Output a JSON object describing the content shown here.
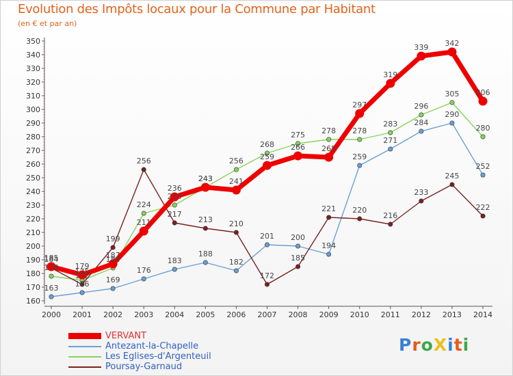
{
  "title": "Evolution des Impôts locaux pour la Commune par Habitant",
  "subtitle": "(en € et par an)",
  "logo_text": "ProXiti",
  "chart_data": {
    "type": "line",
    "title": "Evolution des Impôts locaux pour la Commune par Habitant",
    "subtitle": "(en € et par an)",
    "x": [
      "2000",
      "2001",
      "2002",
      "2003",
      "2004",
      "2005",
      "2006",
      "2007",
      "2008",
      "2009",
      "2010",
      "2011",
      "2012",
      "2013",
      "2014"
    ],
    "ylim": [
      160,
      350
    ],
    "ytick_step": 10,
    "grid": false,
    "legend_position": "bottom-left",
    "series": [
      {
        "name": "VERVANT",
        "color": "#ee0000",
        "emphasis": true,
        "values": [
          185,
          179,
          187,
          211,
          236,
          243,
          241,
          259,
          266,
          265,
          297,
          319,
          339,
          342,
          306
        ]
      },
      {
        "name": "Antezant-la-Chapelle",
        "color": "#6a9fd4",
        "emphasis": false,
        "values": [
          163,
          166,
          169,
          176,
          183,
          188,
          182,
          201,
          200,
          194,
          259,
          271,
          284,
          290,
          252
        ]
      },
      {
        "name": "Les Eglises-d'Argenteuil",
        "color": "#86d45a",
        "emphasis": false,
        "values": [
          178,
          175,
          184,
          224,
          230,
          243,
          256,
          268,
          275,
          278,
          278,
          283,
          296,
          305,
          280
        ]
      },
      {
        "name": "Poursay-Garnaud",
        "color": "#7a2020",
        "emphasis": false,
        "values": [
          184,
          172,
          199,
          256,
          217,
          213,
          210,
          172,
          185,
          221,
          220,
          216,
          233,
          245,
          222
        ]
      }
    ]
  }
}
